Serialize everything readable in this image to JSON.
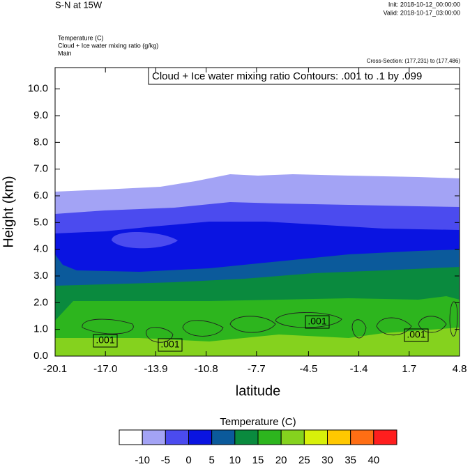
{
  "title": "S-N at 15W",
  "init": "Init: 2018-10-12_00:00:00",
  "valid": "Valid: 2018-10-17_03:00:00",
  "fields": [
    "Temperature   (C)",
    "Cloud + Ice water mixing ratio   (g/kg)",
    "Main"
  ],
  "cross_section": "Cross-Section: (177,231) to (177,486)",
  "chart_data": {
    "type": "contour",
    "contour_note": "Cloud + Ice water mixing ratio Contours: .001 to .1 by .099",
    "contour_labels": [
      ".001",
      ".001",
      ".001",
      ".001"
    ],
    "x_label": "latitude",
    "y_label": "Height (km)",
    "xlim": [
      -20.1,
      4.8
    ],
    "xticks": [
      -20.1,
      {
        "value": -17,
        "label": "-17.0"
      },
      -13.9,
      -10.8,
      -7.7,
      -4.5,
      -1.4,
      1.7,
      4.8
    ],
    "ylim": [
      0,
      10.8
    ],
    "yticks": [
      {
        "value": 0,
        "label": "0.0"
      },
      {
        "value": 1,
        "label": "1.0"
      },
      {
        "value": 2,
        "label": "2.0"
      },
      {
        "value": 3,
        "label": "3.0"
      },
      {
        "value": 4,
        "label": "4.0"
      },
      {
        "value": 5,
        "label": "5.0"
      },
      {
        "value": 6,
        "label": "6.0"
      },
      {
        "value": 7,
        "label": "7.0"
      },
      {
        "value": 8,
        "label": "8.0"
      },
      {
        "value": 9,
        "label": "9.0"
      },
      {
        "value": 10,
        "label": "10.0"
      }
    ],
    "colorbar": {
      "title": "Temperature  (C)",
      "levels": [
        -10,
        -5,
        0,
        5,
        10,
        15,
        20,
        25,
        30,
        35,
        40
      ],
      "colors": [
        "#ffffff",
        "#a3a3f5",
        "#4b4bef",
        "#0a14e1",
        "#0b5a9b",
        "#0a8a3e",
        "#2db51e",
        "#85d21e",
        "#d8f00a",
        "#ffc800",
        "#ff6e14",
        "#ff1e1e"
      ]
    }
  }
}
